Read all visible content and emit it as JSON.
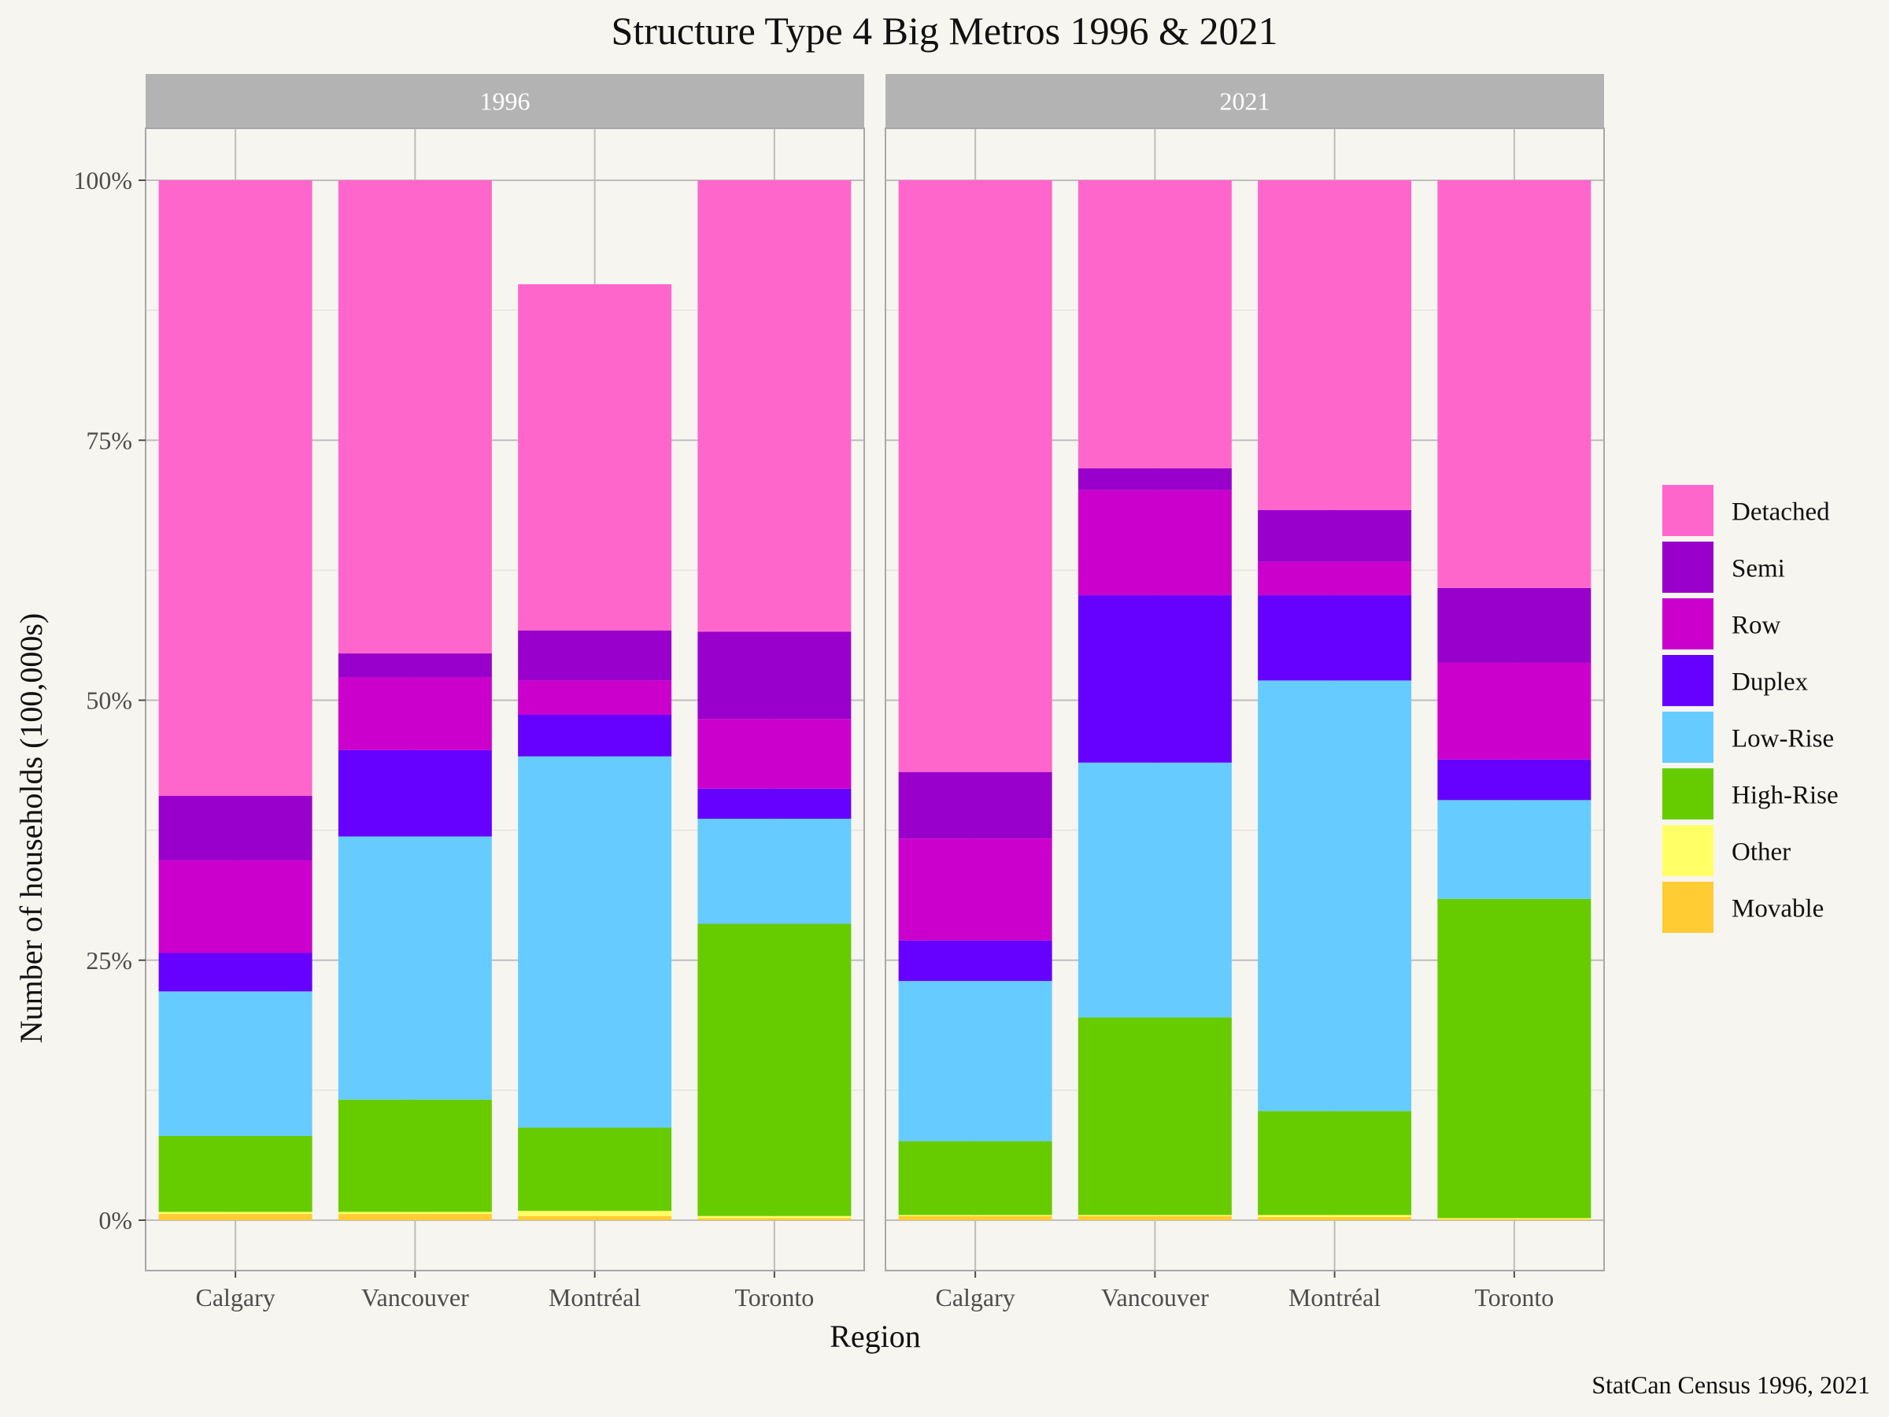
{
  "chart_data": {
    "type": "bar",
    "stacked": true,
    "percent": true,
    "title": "Structure Type 4 Big Metros 1996 & 2021",
    "xlabel": "Region",
    "ylabel": "Number of households (100,000s)",
    "caption": "StatCan Census 1996, 2021",
    "ylim": [
      0,
      1
    ],
    "yticks": [
      "0%",
      "25%",
      "50%",
      "75%",
      "100%"
    ],
    "categories": [
      "Calgary",
      "Vancouver",
      "Montréal",
      "Toronto"
    ],
    "legend_position": "right",
    "series": [
      {
        "name": "Movable",
        "color": "#ffcc33"
      },
      {
        "name": "Other",
        "color": "#ffff66"
      },
      {
        "name": "High-Rise",
        "color": "#66cc00"
      },
      {
        "name": "Low-Rise",
        "color": "#66ccff"
      },
      {
        "name": "Duplex",
        "color": "#6600ff"
      },
      {
        "name": "Row",
        "color": "#cc00cc"
      },
      {
        "name": "Semi",
        "color": "#9900cc"
      },
      {
        "name": "Detached",
        "color": "#ff66cc"
      }
    ],
    "legend_order": [
      "Detached",
      "Semi",
      "Row",
      "Duplex",
      "Low-Rise",
      "High-Rise",
      "Other",
      "Movable"
    ],
    "panels": [
      {
        "label": "1996",
        "values": {
          "Calgary": {
            "Movable": 0.006,
            "Other": 0.002,
            "High-Rise": 0.073,
            "Low-Rise": 0.139,
            "Duplex": 0.037,
            "Row": 0.089,
            "Semi": 0.062,
            "Detached": 0.592
          },
          "Vancouver": {
            "Movable": 0.006,
            "Other": 0.002,
            "High-Rise": 0.108,
            "Low-Rise": 0.253,
            "Duplex": 0.083,
            "Row": 0.07,
            "Semi": 0.023,
            "Detached": 0.455
          },
          "Montréal": {
            "Movable": 0.004,
            "Other": 0.005,
            "High-Rise": 0.08,
            "Low-Rise": 0.357,
            "Duplex": 0.04,
            "Row": 0.033,
            "Semi": 0.048,
            "Detached": 0.333
          },
          "Toronto": {
            "Movable": 0.002,
            "Other": 0.002,
            "High-Rise": 0.281,
            "Low-Rise": 0.101,
            "Duplex": 0.029,
            "Row": 0.067,
            "Semi": 0.084,
            "Detached": 0.434
          }
        }
      },
      {
        "label": "2021",
        "values": {
          "Calgary": {
            "Movable": 0.004,
            "Other": 0.001,
            "High-Rise": 0.071,
            "Low-Rise": 0.154,
            "Duplex": 0.039,
            "Row": 0.098,
            "Semi": 0.064,
            "Detached": 0.569
          },
          "Vancouver": {
            "Movable": 0.004,
            "Other": 0.001,
            "High-Rise": 0.19,
            "Low-Rise": 0.245,
            "Duplex": 0.161,
            "Row": 0.101,
            "Semi": 0.021,
            "Detached": 0.277
          },
          "Montréal": {
            "Movable": 0.003,
            "Other": 0.002,
            "High-Rise": 0.1,
            "Low-Rise": 0.414,
            "Duplex": 0.082,
            "Row": 0.032,
            "Semi": 0.05,
            "Detached": 0.317
          },
          "Toronto": {
            "Movable": 0.001,
            "Other": 0.001,
            "High-Rise": 0.307,
            "Low-Rise": 0.095,
            "Duplex": 0.039,
            "Row": 0.093,
            "Semi": 0.072,
            "Detached": 0.392
          }
        }
      }
    ]
  }
}
